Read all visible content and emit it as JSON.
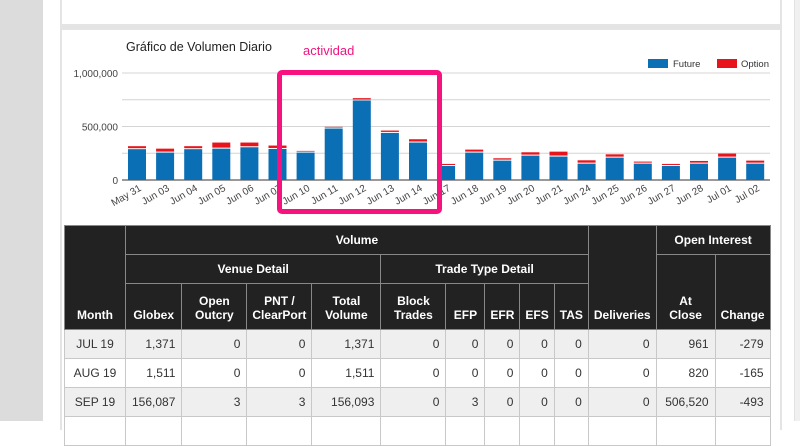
{
  "annotation": "actividad",
  "chart_data": {
    "type": "bar",
    "stacked": true,
    "title": "Gráfico de Volumen Diario",
    "categories": [
      "May 31",
      "Jun 03",
      "Jun 04",
      "Jun 05",
      "Jun 06",
      "Jun 07",
      "Jun 10",
      "Jun 11",
      "Jun 12",
      "Jun 13",
      "Jun 14",
      "Jun 17",
      "Jun 18",
      "Jun 19",
      "Jun 20",
      "Jun 21",
      "Jun 24",
      "Jun 25",
      "Jun 26",
      "Jun 27",
      "Jun 28",
      "Jul 01",
      "Jul 02"
    ],
    "series": [
      {
        "name": "Future",
        "color": "#0b6fb5",
        "values": [
          288000,
          256000,
          288000,
          293000,
          306000,
          290000,
          256000,
          481000,
          743000,
          440000,
          350000,
          131000,
          256000,
          181000,
          228000,
          219000,
          153000,
          209000,
          153000,
          131000,
          153000,
          209000,
          153000
        ]
      },
      {
        "name": "Option",
        "color": "#e8141c",
        "values": [
          28000,
          37000,
          28000,
          57000,
          44000,
          32000,
          16000,
          16000,
          22000,
          22000,
          31000,
          19000,
          28000,
          22000,
          31000,
          46000,
          31000,
          31000,
          19000,
          19000,
          25000,
          38000,
          28000
        ]
      }
    ],
    "yticks": [
      "0",
      "500,000",
      "1,000,000"
    ],
    "ylim": [
      0,
      1000000
    ],
    "grid": true,
    "legend": "top-right"
  },
  "table": {
    "group_headers": {
      "volume": "Volume",
      "venue_detail": "Venue Detail",
      "trade_type_detail": "Trade Type Detail",
      "open_interest": "Open Interest"
    },
    "columns": [
      "Month",
      "Globex",
      "Open Outcry",
      "PNT / ClearPort",
      "Total Volume",
      "Block Trades",
      "EFP",
      "EFR",
      "EFS",
      "TAS",
      "Deliveries",
      "At Close",
      "Change"
    ],
    "rows": [
      [
        "JUL 19",
        "1,371",
        "0",
        "0",
        "1,371",
        "0",
        "0",
        "0",
        "0",
        "0",
        "0",
        "961",
        "-279"
      ],
      [
        "AUG 19",
        "1,511",
        "0",
        "0",
        "1,511",
        "0",
        "0",
        "0",
        "0",
        "0",
        "0",
        "820",
        "-165"
      ],
      [
        "SEP 19",
        "156,087",
        "3",
        "3",
        "156,093",
        "0",
        "3",
        "0",
        "0",
        "0",
        "0",
        "506,520",
        "-493"
      ],
      [
        "",
        "",
        "",
        "",
        "",
        "",
        "",
        "",
        "",
        "",
        "",
        "",
        ""
      ]
    ]
  }
}
